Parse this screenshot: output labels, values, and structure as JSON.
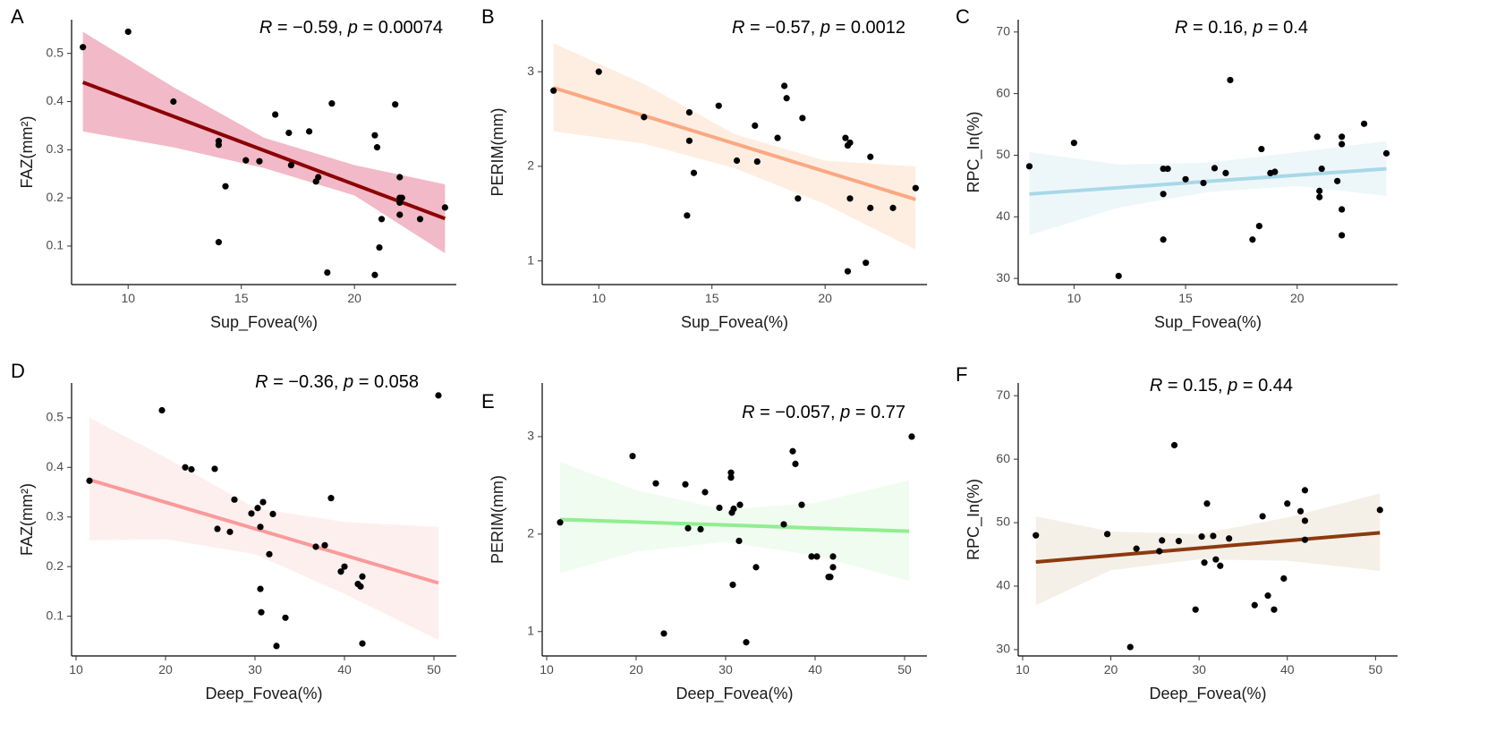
{
  "chart_data": [
    {
      "type": "scatter",
      "panel": "A",
      "trend": "linear regression with 95% CI",
      "xlabel": "Sup_Fovea(%)",
      "ylabel": "FAZ(mm²)",
      "xlim": [
        7.5,
        24.5
      ],
      "ylim": [
        0.02,
        0.57
      ],
      "xticks": [
        10,
        15,
        20
      ],
      "yticks": [
        0.1,
        0.2,
        0.3,
        0.4,
        0.5
      ],
      "stats": {
        "r_label": "R",
        "eq": " = −0.59, ",
        "p_label": "p",
        "p_eq": " = 0.00074"
      },
      "line_color": "#8b0000",
      "band_color": "#e8809a",
      "fit": {
        "x": [
          8,
          24
        ],
        "y": [
          0.44,
          0.157
        ]
      },
      "ci_lower": [
        [
          8,
          0.338
        ],
        [
          12,
          0.305
        ],
        [
          16,
          0.262
        ],
        [
          20,
          0.205
        ],
        [
          24,
          0.085
        ]
      ],
      "ci_upper": [
        [
          8,
          0.545
        ],
        [
          12,
          0.43
        ],
        [
          16,
          0.325
        ],
        [
          20,
          0.268
        ],
        [
          24,
          0.228
        ]
      ],
      "points": [
        [
          8,
          0.513
        ],
        [
          10,
          0.545
        ],
        [
          12,
          0.4
        ],
        [
          14,
          0.108
        ],
        [
          14,
          0.31
        ],
        [
          14,
          0.318
        ],
        [
          14.3,
          0.224
        ],
        [
          15.2,
          0.278
        ],
        [
          15.8,
          0.276
        ],
        [
          16.5,
          0.373
        ],
        [
          17.1,
          0.335
        ],
        [
          17.2,
          0.268
        ],
        [
          18,
          0.338
        ],
        [
          18.3,
          0.234
        ],
        [
          18.4,
          0.243
        ],
        [
          18.8,
          0.045
        ],
        [
          19,
          0.396
        ],
        [
          20.9,
          0.04
        ],
        [
          20.9,
          0.33
        ],
        [
          21,
          0.305
        ],
        [
          21.1,
          0.097
        ],
        [
          21.2,
          0.156
        ],
        [
          21.8,
          0.394
        ],
        [
          22,
          0.243
        ],
        [
          22,
          0.2
        ],
        [
          22,
          0.165
        ],
        [
          22,
          0.19
        ],
        [
          22.1,
          0.2
        ],
        [
          22.9,
          0.156
        ],
        [
          24,
          0.18
        ]
      ]
    },
    {
      "type": "scatter",
      "panel": "B",
      "trend": "linear regression with 95% CI",
      "xlabel": "Sup_Fovea(%)",
      "ylabel": "PERIM(mm)",
      "xlim": [
        7.5,
        24.5
      ],
      "ylim": [
        0.75,
        3.55
      ],
      "xticks": [
        10,
        15,
        20
      ],
      "yticks": [
        1,
        2,
        3
      ],
      "stats": {
        "r_label": "R",
        "eq": " = −0.57, ",
        "p_label": "p",
        "p_eq": " = 0.0012"
      },
      "line_color": "#fba882",
      "band_color": "#fde0c9",
      "fit": {
        "x": [
          8,
          24
        ],
        "y": [
          2.83,
          1.65
        ]
      },
      "ci_lower": [
        [
          8,
          2.37
        ],
        [
          12,
          2.24
        ],
        [
          16,
          1.98
        ],
        [
          20,
          1.6
        ],
        [
          24,
          1.12
        ]
      ],
      "ci_upper": [
        [
          8,
          3.3
        ],
        [
          12,
          2.87
        ],
        [
          16,
          2.34
        ],
        [
          20,
          2.06
        ],
        [
          24,
          2.0
        ]
      ],
      "points": [
        [
          8,
          2.8
        ],
        [
          10,
          3.0
        ],
        [
          12,
          2.52
        ],
        [
          13.9,
          1.48
        ],
        [
          14,
          2.57
        ],
        [
          14,
          2.27
        ],
        [
          14.2,
          1.93
        ],
        [
          15.3,
          2.64
        ],
        [
          16.1,
          2.06
        ],
        [
          16.9,
          2.43
        ],
        [
          17,
          2.05
        ],
        [
          17.9,
          2.3
        ],
        [
          18.2,
          2.85
        ],
        [
          18.3,
          2.72
        ],
        [
          18.8,
          1.66
        ],
        [
          19,
          2.51
        ],
        [
          20.9,
          2.3
        ],
        [
          21,
          0.89
        ],
        [
          21,
          2.22
        ],
        [
          21.1,
          2.25
        ],
        [
          21.1,
          1.66
        ],
        [
          21.8,
          0.98
        ],
        [
          22,
          2.1
        ],
        [
          22,
          1.56
        ],
        [
          23,
          1.56
        ],
        [
          24,
          1.77
        ]
      ]
    },
    {
      "type": "scatter",
      "panel": "C",
      "trend": "linear regression with 95% CI",
      "xlabel": "Sup_Fovea(%)",
      "ylabel": "RPC_In(%)",
      "xlim": [
        7.5,
        24.5
      ],
      "ylim": [
        29,
        72
      ],
      "xticks": [
        10,
        15,
        20
      ],
      "yticks": [
        30,
        40,
        50,
        60,
        70
      ],
      "stats": {
        "r_label": "R",
        "eq": " = 0.16, ",
        "p_label": "p",
        "p_eq": " = 0.4"
      },
      "line_color": "#a8d8e8",
      "band_color": "#dff0f5",
      "fit": {
        "x": [
          8,
          24
        ],
        "y": [
          43.7,
          47.8
        ]
      },
      "ci_lower": [
        [
          8,
          37
        ],
        [
          12,
          41.5
        ],
        [
          16,
          44
        ],
        [
          20,
          45
        ],
        [
          24,
          43.4
        ]
      ],
      "ci_upper": [
        [
          8,
          50.5
        ],
        [
          12,
          48.5
        ],
        [
          16,
          48.8
        ],
        [
          20,
          50.5
        ],
        [
          24,
          52.3
        ]
      ],
      "points": [
        [
          8,
          48.2
        ],
        [
          10,
          52
        ],
        [
          12,
          30.4
        ],
        [
          14,
          36.3
        ],
        [
          14,
          43.7
        ],
        [
          14,
          47.8
        ],
        [
          14.2,
          47.8
        ],
        [
          15,
          46.1
        ],
        [
          15.8,
          45.5
        ],
        [
          16.3,
          47.9
        ],
        [
          16.8,
          47.1
        ],
        [
          17,
          62.2
        ],
        [
          18,
          36.3
        ],
        [
          18.3,
          38.5
        ],
        [
          18.4,
          51
        ],
        [
          18.8,
          47.1
        ],
        [
          19,
          47.3
        ],
        [
          20.9,
          53
        ],
        [
          21,
          44.2
        ],
        [
          21,
          43.2
        ],
        [
          21.1,
          47.8
        ],
        [
          21.8,
          45.8
        ],
        [
          22,
          51.8
        ],
        [
          22,
          53
        ],
        [
          22,
          41.2
        ],
        [
          22,
          37
        ],
        [
          23,
          55.1
        ],
        [
          24,
          50.3
        ]
      ]
    },
    {
      "type": "scatter",
      "panel": "D",
      "trend": "linear regression with 95% CI",
      "xlabel": "Deep_Fovea(%)",
      "ylabel": "FAZ(mm²)",
      "xlim": [
        9.5,
        52.5
      ],
      "ylim": [
        0.02,
        0.57
      ],
      "xticks": [
        10,
        20,
        30,
        40,
        50
      ],
      "yticks": [
        0.1,
        0.2,
        0.3,
        0.4,
        0.5
      ],
      "stats": {
        "r_label": "R",
        "eq": " = −0.36, ",
        "p_label": "p",
        "p_eq": " = 0.058"
      },
      "line_color": "#fb9a9a",
      "band_color": "#fde2e2",
      "fit": {
        "x": [
          11.5,
          50.5
        ],
        "y": [
          0.375,
          0.167
        ]
      },
      "ci_lower": [
        [
          11.5,
          0.253
        ],
        [
          20,
          0.255
        ],
        [
          30,
          0.225
        ],
        [
          40,
          0.145
        ],
        [
          50.5,
          0.052
        ]
      ],
      "ci_upper": [
        [
          11.5,
          0.5
        ],
        [
          20,
          0.42
        ],
        [
          30,
          0.318
        ],
        [
          40,
          0.29
        ],
        [
          50.5,
          0.28
        ]
      ],
      "points": [
        [
          11.5,
          0.373
        ],
        [
          19.6,
          0.515
        ],
        [
          22.2,
          0.4
        ],
        [
          22.9,
          0.396
        ],
        [
          25.5,
          0.397
        ],
        [
          25.8,
          0.276
        ],
        [
          27.2,
          0.27
        ],
        [
          27.7,
          0.335
        ],
        [
          29.6,
          0.307
        ],
        [
          30.3,
          0.318
        ],
        [
          30.6,
          0.28
        ],
        [
          30.6,
          0.155
        ],
        [
          30.7,
          0.108
        ],
        [
          30.9,
          0.33
        ],
        [
          31.6,
          0.225
        ],
        [
          32,
          0.306
        ],
        [
          32.4,
          0.04
        ],
        [
          33.4,
          0.097
        ],
        [
          36.8,
          0.24
        ],
        [
          37.8,
          0.243
        ],
        [
          38.5,
          0.338
        ],
        [
          39.6,
          0.19
        ],
        [
          40,
          0.2
        ],
        [
          41.5,
          0.165
        ],
        [
          41.8,
          0.16
        ],
        [
          42,
          0.18
        ],
        [
          42,
          0.045
        ],
        [
          50.5,
          0.545
        ]
      ]
    },
    {
      "type": "scatter",
      "panel": "E",
      "trend": "linear regression with 95% CI",
      "xlabel": "Deep_Fovea(%)",
      "ylabel": "PERIM(mm)",
      "xlim": [
        9.5,
        52.5
      ],
      "ylim": [
        0.75,
        3.55
      ],
      "xticks": [
        10,
        20,
        30,
        40,
        50
      ],
      "yticks": [
        1,
        2,
        3
      ],
      "stats": {
        "r_label": "R",
        "eq": " = −0.057, ",
        "p_label": "p",
        "p_eq": " = 0.77"
      },
      "line_color": "#90ee90",
      "band_color": "#e3f9e3",
      "fit": {
        "x": [
          11.5,
          50.5
        ],
        "y": [
          2.15,
          2.03
        ]
      },
      "ci_lower": [
        [
          11.5,
          1.6
        ],
        [
          20,
          1.82
        ],
        [
          30,
          1.92
        ],
        [
          40,
          1.78
        ],
        [
          50.5,
          1.52
        ]
      ],
      "ci_upper": [
        [
          11.5,
          2.74
        ],
        [
          20,
          2.45
        ],
        [
          30,
          2.25
        ],
        [
          40,
          2.32
        ],
        [
          50.5,
          2.55
        ]
      ],
      "points": [
        [
          11.5,
          2.12
        ],
        [
          19.6,
          2.8
        ],
        [
          22.2,
          2.52
        ],
        [
          23.1,
          0.98
        ],
        [
          25.5,
          2.51
        ],
        [
          25.8,
          2.06
        ],
        [
          27.2,
          2.05
        ],
        [
          27.7,
          2.43
        ],
        [
          29.3,
          2.27
        ],
        [
          30.6,
          2.63
        ],
        [
          30.6,
          2.58
        ],
        [
          30.7,
          2.22
        ],
        [
          30.9,
          2.26
        ],
        [
          30.8,
          1.48
        ],
        [
          31.6,
          2.3
        ],
        [
          31.5,
          1.93
        ],
        [
          32.3,
          0.89
        ],
        [
          33.4,
          1.66
        ],
        [
          36.5,
          2.1
        ],
        [
          37.5,
          2.85
        ],
        [
          37.8,
          2.72
        ],
        [
          38.5,
          2.3
        ],
        [
          39.6,
          1.77
        ],
        [
          40.2,
          1.77
        ],
        [
          41.5,
          1.56
        ],
        [
          41.7,
          1.56
        ],
        [
          42,
          1.66
        ],
        [
          42,
          1.77
        ],
        [
          50.8,
          3.0
        ]
      ]
    },
    {
      "type": "scatter",
      "panel": "F",
      "trend": "linear regression with 95% CI",
      "xlabel": "Deep_Fovea(%)",
      "ylabel": "RPC_In(%)",
      "xlim": [
        9.5,
        52.5
      ],
      "ylim": [
        29,
        72
      ],
      "xticks": [
        10,
        20,
        30,
        40,
        50
      ],
      "yticks": [
        30,
        40,
        50,
        60,
        70
      ],
      "stats": {
        "r_label": "R",
        "eq": " = 0.15, ",
        "p_label": "p",
        "p_eq": " = 0.44"
      },
      "line_color": "#8b3a0f",
      "band_color": "#ede3d4",
      "fit": {
        "x": [
          11.5,
          50.5
        ],
        "y": [
          43.8,
          48.4
        ]
      },
      "ci_lower": [
        [
          11.5,
          37
        ],
        [
          20,
          42.5
        ],
        [
          30,
          44.2
        ],
        [
          40,
          44
        ],
        [
          50.5,
          42.4
        ]
      ],
      "ci_upper": [
        [
          11.5,
          51
        ],
        [
          20,
          48.6
        ],
        [
          30,
          48.2
        ],
        [
          40,
          50.8
        ],
        [
          50.5,
          54.6
        ]
      ],
      "points": [
        [
          11.5,
          48
        ],
        [
          19.6,
          48.2
        ],
        [
          22.2,
          30.4
        ],
        [
          22.9,
          45.9
        ],
        [
          25.5,
          45.5
        ],
        [
          25.8,
          47.2
        ],
        [
          27.2,
          62.2
        ],
        [
          27.7,
          47.1
        ],
        [
          29.6,
          36.3
        ],
        [
          30.3,
          47.8
        ],
        [
          30.6,
          43.7
        ],
        [
          30.9,
          53
        ],
        [
          31.6,
          47.9
        ],
        [
          31.9,
          44.2
        ],
        [
          32.4,
          43.2
        ],
        [
          33.4,
          47.5
        ],
        [
          36.3,
          37
        ],
        [
          37.2,
          51
        ],
        [
          37.8,
          38.5
        ],
        [
          38.5,
          36.3
        ],
        [
          39.6,
          41.2
        ],
        [
          40,
          53
        ],
        [
          41.5,
          51.8
        ],
        [
          42,
          55.1
        ],
        [
          42,
          50.3
        ],
        [
          42,
          47.3
        ],
        [
          50.5,
          52
        ]
      ]
    }
  ]
}
